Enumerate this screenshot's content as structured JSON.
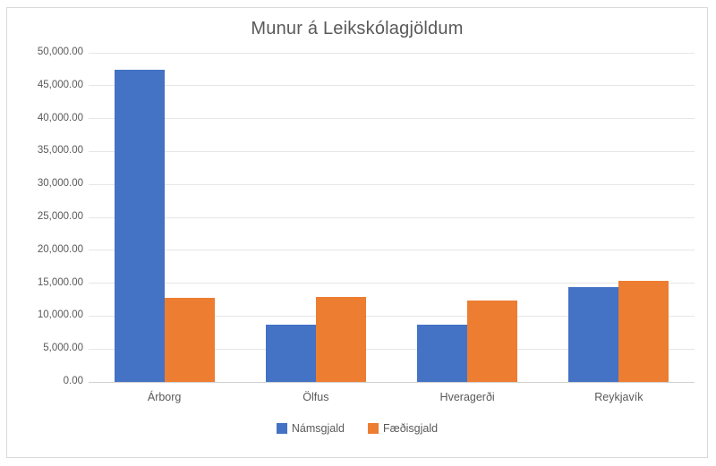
{
  "chart_data": {
    "type": "bar",
    "title": "Munur á Leikskólagjöldum",
    "xlabel": "",
    "ylabel": "",
    "categories": [
      "Árborg",
      "Ölfus",
      "Hveragerði",
      "Reykjavík"
    ],
    "series": [
      {
        "name": "Námsgjald",
        "color": "#4472C4",
        "values": [
          47400,
          8700,
          8650,
          14350
        ]
      },
      {
        "name": "Fæðisgjald",
        "color": "#ED7D31",
        "values": [
          12800,
          12850,
          12300,
          15350
        ]
      }
    ],
    "ylim": [
      0,
      50000
    ],
    "ytick_step": 5000,
    "yticks": [
      {
        "value": 0,
        "label": "0.00"
      },
      {
        "value": 5000,
        "label": "5,000.00"
      },
      {
        "value": 10000,
        "label": "10,000.00"
      },
      {
        "value": 15000,
        "label": "15,000.00"
      },
      {
        "value": 20000,
        "label": "20,000.00"
      },
      {
        "value": 25000,
        "label": "25,000.00"
      },
      {
        "value": 30000,
        "label": "30,000.00"
      },
      {
        "value": 35000,
        "label": "35,000.00"
      },
      {
        "value": 40000,
        "label": "40,000.00"
      },
      {
        "value": 45000,
        "label": "45,000.00"
      },
      {
        "value": 50000,
        "label": "50,000.00"
      }
    ],
    "grid": true,
    "legend_position": "bottom"
  },
  "colors": {
    "background": "#FFFFFF",
    "border": "#D9D9D9",
    "gridline": "#E6E6E6",
    "axis_line": "#D0D0D0",
    "text": "#595959",
    "series_blue": "#4472C4",
    "series_orange": "#ED7D31"
  }
}
